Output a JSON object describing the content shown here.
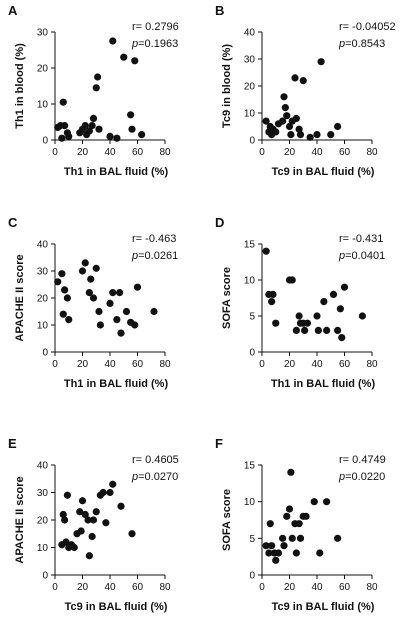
{
  "chart_data": [
    {
      "type": "scatter",
      "panel_label": "A",
      "xlabel": "Th1 in BAL fluid (%)",
      "ylabel": "Th1 in blood (%)",
      "xlim": [
        0,
        80
      ],
      "ylim": [
        0,
        30
      ],
      "xticks": [
        0,
        20,
        40,
        60,
        80
      ],
      "yticks": [
        0,
        10,
        20,
        30
      ],
      "r_label": "r=",
      "r_value": "0.2796",
      "p_label": "p",
      "p_value": "=0.1963",
      "points": [
        [
          2,
          3.5
        ],
        [
          4,
          4
        ],
        [
          5,
          0.5
        ],
        [
          6,
          10.5
        ],
        [
          7,
          4
        ],
        [
          9,
          2
        ],
        [
          10,
          1
        ],
        [
          18,
          2
        ],
        [
          20,
          3
        ],
        [
          22,
          4
        ],
        [
          23,
          1.5
        ],
        [
          25,
          2.5
        ],
        [
          27,
          4
        ],
        [
          28,
          6
        ],
        [
          30,
          14.5
        ],
        [
          31,
          17.5
        ],
        [
          32,
          3
        ],
        [
          40,
          1
        ],
        [
          42,
          27.5
        ],
        [
          45,
          0.5
        ],
        [
          50,
          23
        ],
        [
          55,
          7
        ],
        [
          56,
          3
        ],
        [
          58,
          22
        ],
        [
          63,
          1.5
        ]
      ]
    },
    {
      "type": "scatter",
      "panel_label": "B",
      "xlabel": "Tc9 in BAL fluid (%)",
      "ylabel": "Tc9 in blood (%)",
      "xlim": [
        0,
        80
      ],
      "ylim": [
        0,
        40
      ],
      "xticks": [
        0,
        20,
        40,
        60,
        80
      ],
      "yticks": [
        0,
        10,
        20,
        30,
        40
      ],
      "r_label": "r=",
      "r_value": "-0.04052",
      "p_label": "p",
      "p_value": "=0.8543",
      "points": [
        [
          3,
          7
        ],
        [
          5,
          3
        ],
        [
          6,
          5
        ],
        [
          7,
          2
        ],
        [
          8,
          4
        ],
        [
          10,
          3
        ],
        [
          12,
          6
        ],
        [
          15,
          7
        ],
        [
          16,
          16
        ],
        [
          17,
          12
        ],
        [
          18,
          9
        ],
        [
          20,
          5
        ],
        [
          21,
          2
        ],
        [
          22,
          7
        ],
        [
          24,
          23
        ],
        [
          25,
          8
        ],
        [
          27,
          4
        ],
        [
          28,
          2
        ],
        [
          30,
          22
        ],
        [
          35,
          1
        ],
        [
          40,
          2
        ],
        [
          43,
          29
        ],
        [
          50,
          2
        ],
        [
          55,
          5
        ]
      ]
    },
    {
      "type": "scatter",
      "panel_label": "C",
      "xlabel": "Th1 in BAL fluid (%)",
      "ylabel": "APACHE II score",
      "xlim": [
        0,
        80
      ],
      "ylim": [
        0,
        40
      ],
      "xticks": [
        0,
        20,
        40,
        60,
        80
      ],
      "yticks": [
        0,
        10,
        20,
        30,
        40
      ],
      "r_label": "r=",
      "r_value": "-0.463",
      "p_label": "p",
      "p_value": "=0.0261",
      "points": [
        [
          2,
          26
        ],
        [
          5,
          29
        ],
        [
          6,
          14
        ],
        [
          7,
          23
        ],
        [
          9,
          20
        ],
        [
          10,
          12
        ],
        [
          20,
          30
        ],
        [
          22,
          33
        ],
        [
          25,
          22
        ],
        [
          26,
          27
        ],
        [
          28,
          20
        ],
        [
          30,
          31
        ],
        [
          32,
          15
        ],
        [
          33,
          10
        ],
        [
          40,
          18
        ],
        [
          42,
          22
        ],
        [
          45,
          12
        ],
        [
          47,
          22
        ],
        [
          48,
          7
        ],
        [
          52,
          15
        ],
        [
          55,
          11
        ],
        [
          58,
          10
        ],
        [
          60,
          24
        ],
        [
          72,
          15
        ]
      ]
    },
    {
      "type": "scatter",
      "panel_label": "D",
      "xlabel": "Th1 in BAL fluid (%)",
      "ylabel": "SOFA score",
      "xlim": [
        0,
        80
      ],
      "ylim": [
        0,
        15
      ],
      "xticks": [
        0,
        20,
        40,
        60,
        80
      ],
      "yticks": [
        0,
        5,
        10,
        15
      ],
      "r_label": "r=",
      "r_value": "-0.431",
      "p_label": "p",
      "p_value": "=0.0401",
      "points": [
        [
          3,
          14
        ],
        [
          5,
          8
        ],
        [
          7,
          7
        ],
        [
          8,
          8
        ],
        [
          10,
          4
        ],
        [
          20,
          10
        ],
        [
          22,
          10
        ],
        [
          25,
          3
        ],
        [
          27,
          5
        ],
        [
          28,
          4
        ],
        [
          30,
          4
        ],
        [
          31,
          3
        ],
        [
          33,
          4
        ],
        [
          40,
          5
        ],
        [
          41,
          3
        ],
        [
          45,
          7
        ],
        [
          47,
          3
        ],
        [
          52,
          8
        ],
        [
          55,
          3
        ],
        [
          57,
          6
        ],
        [
          58,
          2
        ],
        [
          60,
          9
        ],
        [
          73,
          5
        ]
      ]
    },
    {
      "type": "scatter",
      "panel_label": "E",
      "xlabel": "Tc9 in BAL fluid (%)",
      "ylabel": "APACHE II score",
      "xlim": [
        0,
        80
      ],
      "ylim": [
        0,
        40
      ],
      "xticks": [
        0,
        20,
        40,
        60,
        80
      ],
      "yticks": [
        0,
        10,
        20,
        30,
        40
      ],
      "r_label": "r=",
      "r_value": "0.4605",
      "p_label": "p",
      "p_value": "=0.0270",
      "points": [
        [
          5,
          11
        ],
        [
          6,
          22
        ],
        [
          7,
          20
        ],
        [
          8,
          12
        ],
        [
          9,
          29
        ],
        [
          10,
          10
        ],
        [
          12,
          11
        ],
        [
          14,
          10
        ],
        [
          16,
          15
        ],
        [
          18,
          23
        ],
        [
          19,
          16
        ],
        [
          20,
          27
        ],
        [
          22,
          22
        ],
        [
          24,
          20
        ],
        [
          25,
          7
        ],
        [
          27,
          14
        ],
        [
          28,
          20
        ],
        [
          30,
          23
        ],
        [
          33,
          29
        ],
        [
          35,
          30
        ],
        [
          37,
          19
        ],
        [
          40,
          30
        ],
        [
          42,
          33
        ],
        [
          48,
          25
        ],
        [
          56,
          15
        ]
      ]
    },
    {
      "type": "scatter",
      "panel_label": "F",
      "xlabel": "Tc9 in BAL fluid (%)",
      "ylabel": "SOFA score",
      "xlim": [
        0,
        80
      ],
      "ylim": [
        0,
        15
      ],
      "xticks": [
        0,
        20,
        40,
        60,
        80
      ],
      "yticks": [
        0,
        5,
        10,
        15
      ],
      "r_label": "r=",
      "r_value": "0.4749",
      "p_label": "p",
      "p_value": "=0.0220",
      "points": [
        [
          3,
          4
        ],
        [
          5,
          3
        ],
        [
          6,
          7
        ],
        [
          7,
          4
        ],
        [
          9,
          3
        ],
        [
          10,
          2
        ],
        [
          12,
          3
        ],
        [
          15,
          5
        ],
        [
          16,
          4
        ],
        [
          18,
          8
        ],
        [
          20,
          9
        ],
        [
          21,
          14
        ],
        [
          22,
          5
        ],
        [
          24,
          7
        ],
        [
          25,
          3
        ],
        [
          27,
          7
        ],
        [
          28,
          5
        ],
        [
          30,
          8
        ],
        [
          32,
          8
        ],
        [
          38,
          10
        ],
        [
          42,
          3
        ],
        [
          47,
          10
        ],
        [
          55,
          5
        ]
      ]
    }
  ]
}
